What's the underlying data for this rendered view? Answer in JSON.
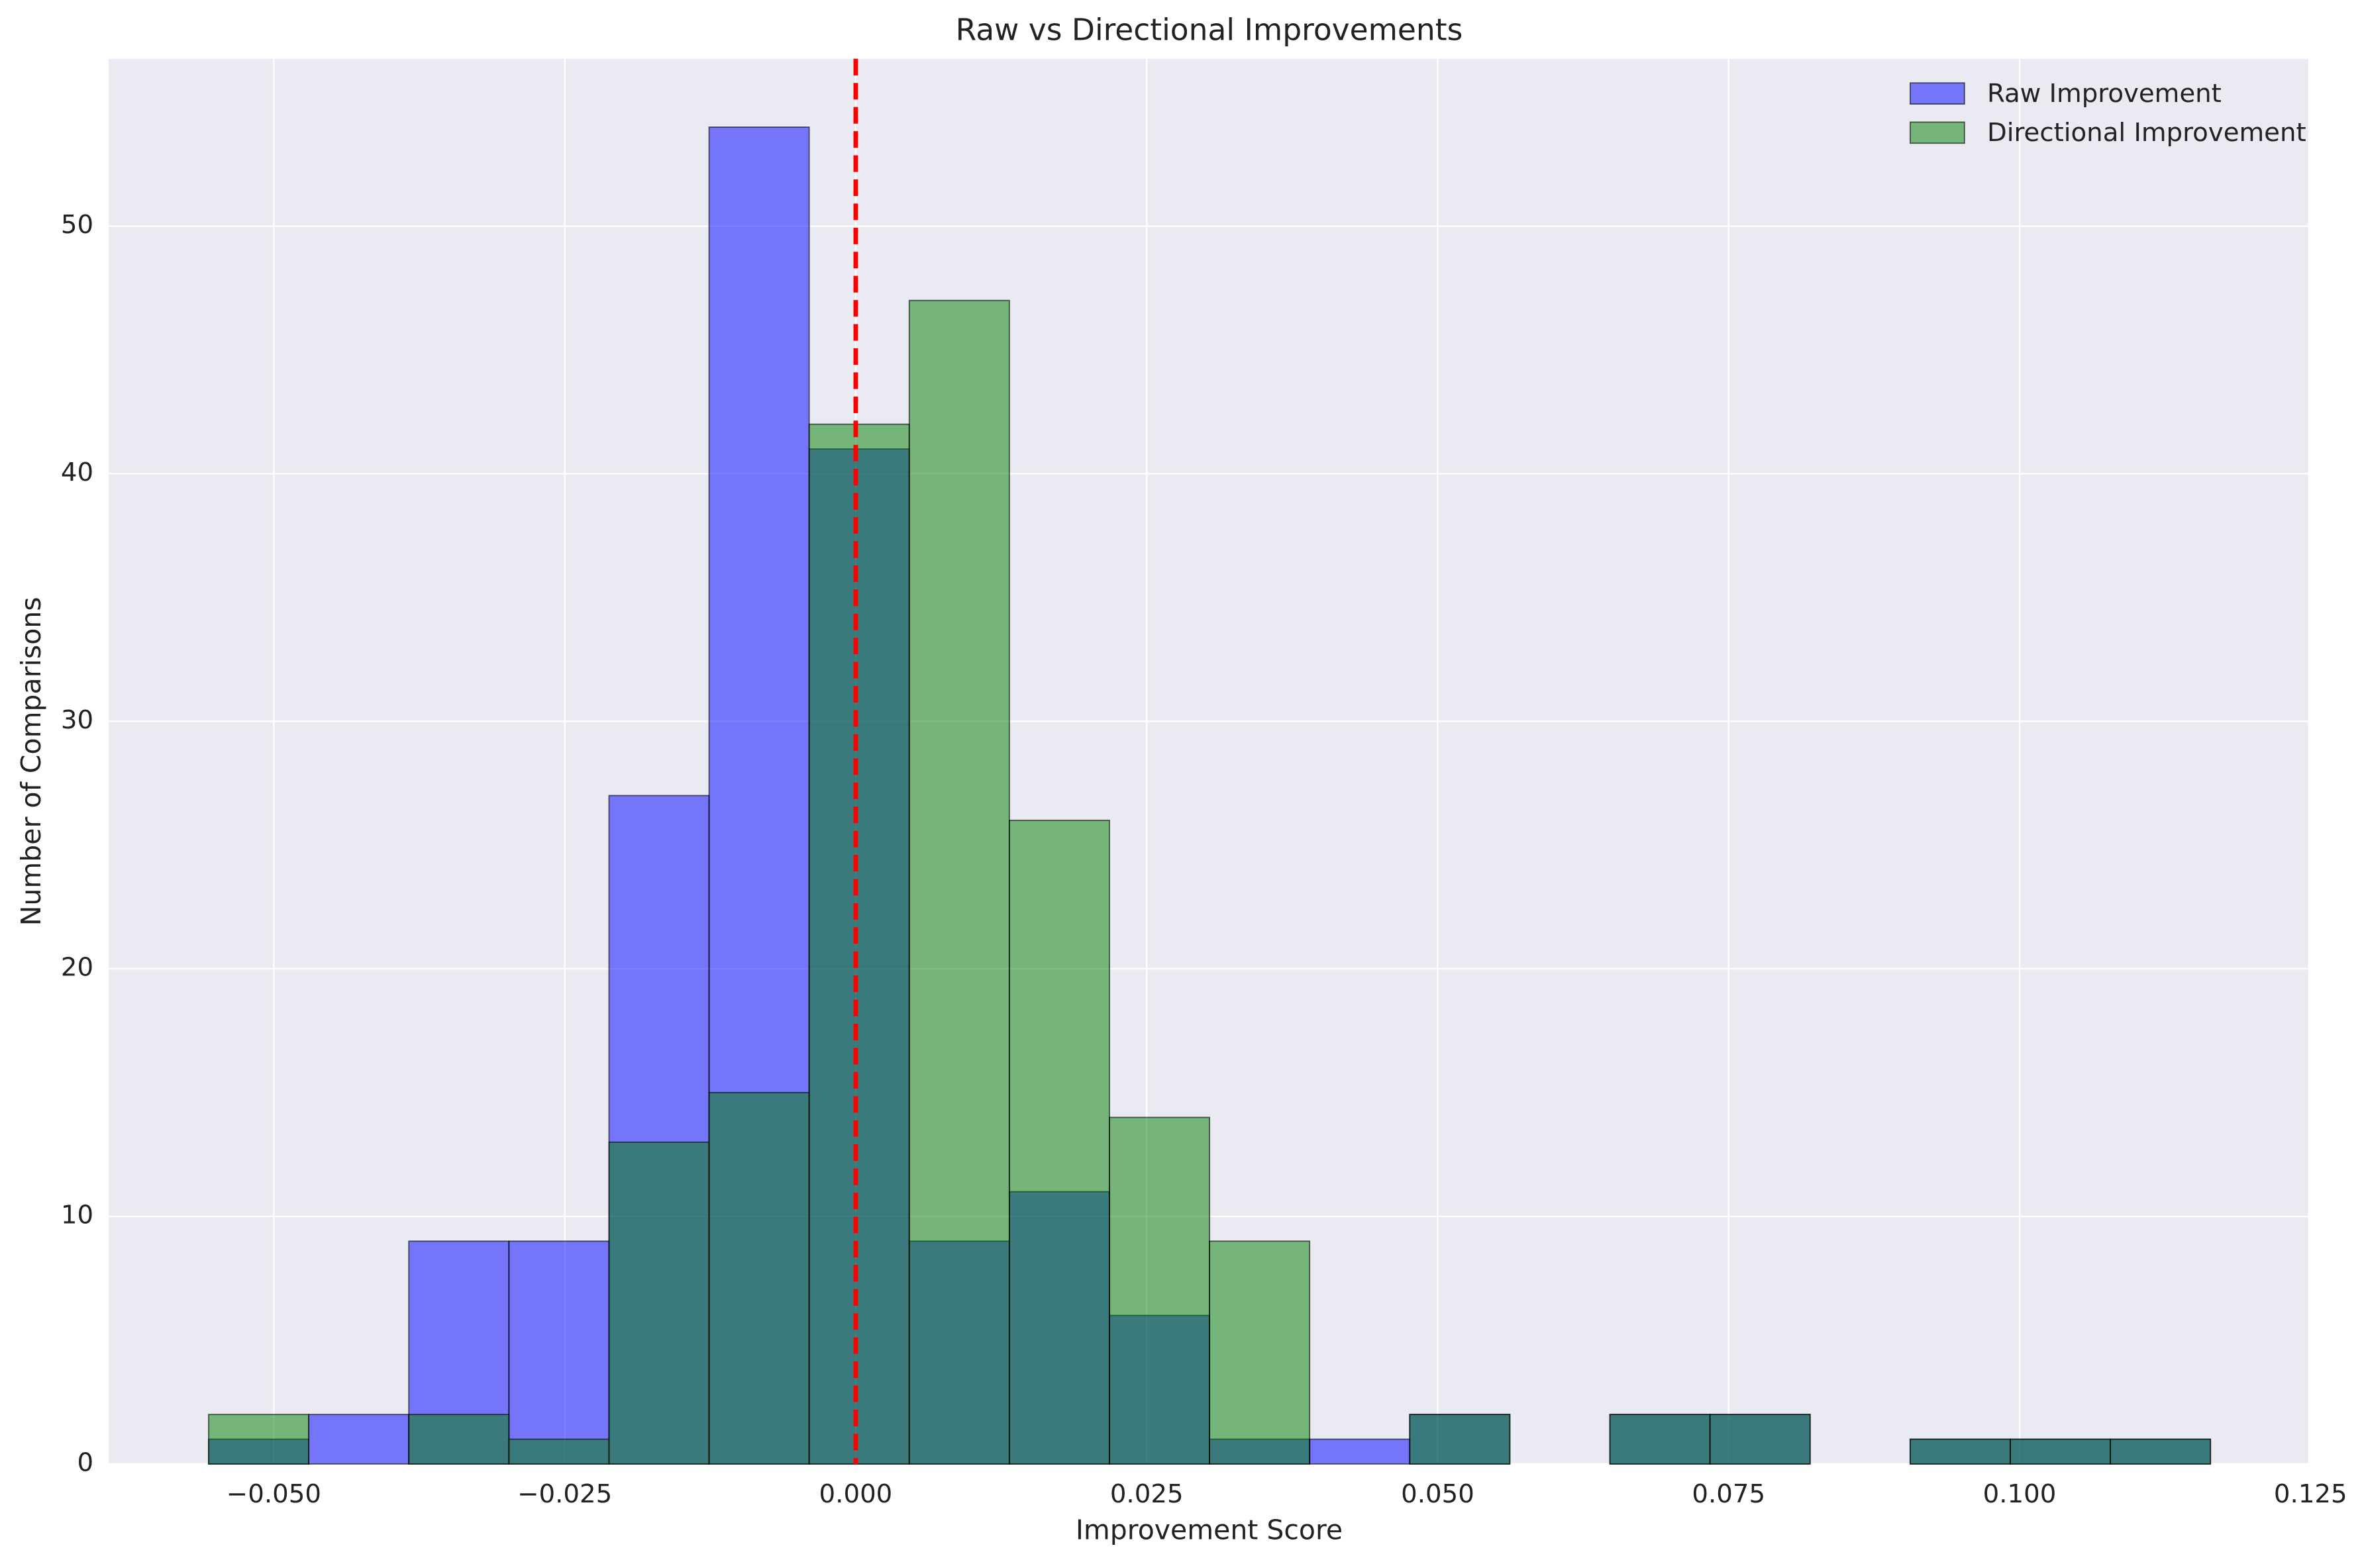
{
  "chart_data": {
    "type": "histogram",
    "title": "Raw vs Directional Improvements",
    "xlabel": "Improvement Score",
    "ylabel": "Number of Comparisons",
    "bins": [
      -0.0556,
      -0.047,
      -0.0384,
      -0.0298,
      -0.0212,
      -0.0126,
      -0.004,
      0.0046,
      0.0132,
      0.0218,
      0.0304,
      0.039,
      0.0476,
      0.0562,
      0.0648,
      0.0734,
      0.082,
      0.0906,
      0.0992,
      0.1078,
      0.1164
    ],
    "series": [
      {
        "name": "Raw Improvement",
        "color": "blue",
        "values": [
          1,
          2,
          9,
          9,
          27,
          54,
          41,
          9,
          11,
          6,
          1,
          1,
          2,
          0,
          2,
          2,
          0,
          1,
          1,
          1
        ]
      },
      {
        "name": "Directional Improvement",
        "color": "green",
        "values": [
          2,
          0,
          2,
          1,
          13,
          15,
          42,
          47,
          26,
          14,
          9,
          0,
          2,
          0,
          2,
          2,
          0,
          1,
          1,
          1
        ]
      }
    ],
    "vline": 0,
    "vline_color": "red",
    "xlim": [
      -0.0642,
      0.1248
    ],
    "ylim": [
      0,
      56.76
    ],
    "xticks": [
      {
        "value": -0.05,
        "label": "−0.050"
      },
      {
        "value": -0.025,
        "label": "−0.025"
      },
      {
        "value": 0,
        "label": "0.000"
      },
      {
        "value": 0.025,
        "label": "0.025"
      },
      {
        "value": 0.05,
        "label": "0.050"
      },
      {
        "value": 0.075,
        "label": "0.075"
      },
      {
        "value": 0.1,
        "label": "0.100"
      },
      {
        "value": 0.125,
        "label": "0.125"
      }
    ],
    "yticks": [
      0,
      10,
      20,
      30,
      40,
      50
    ],
    "grid": true,
    "legend": "upper right"
  }
}
